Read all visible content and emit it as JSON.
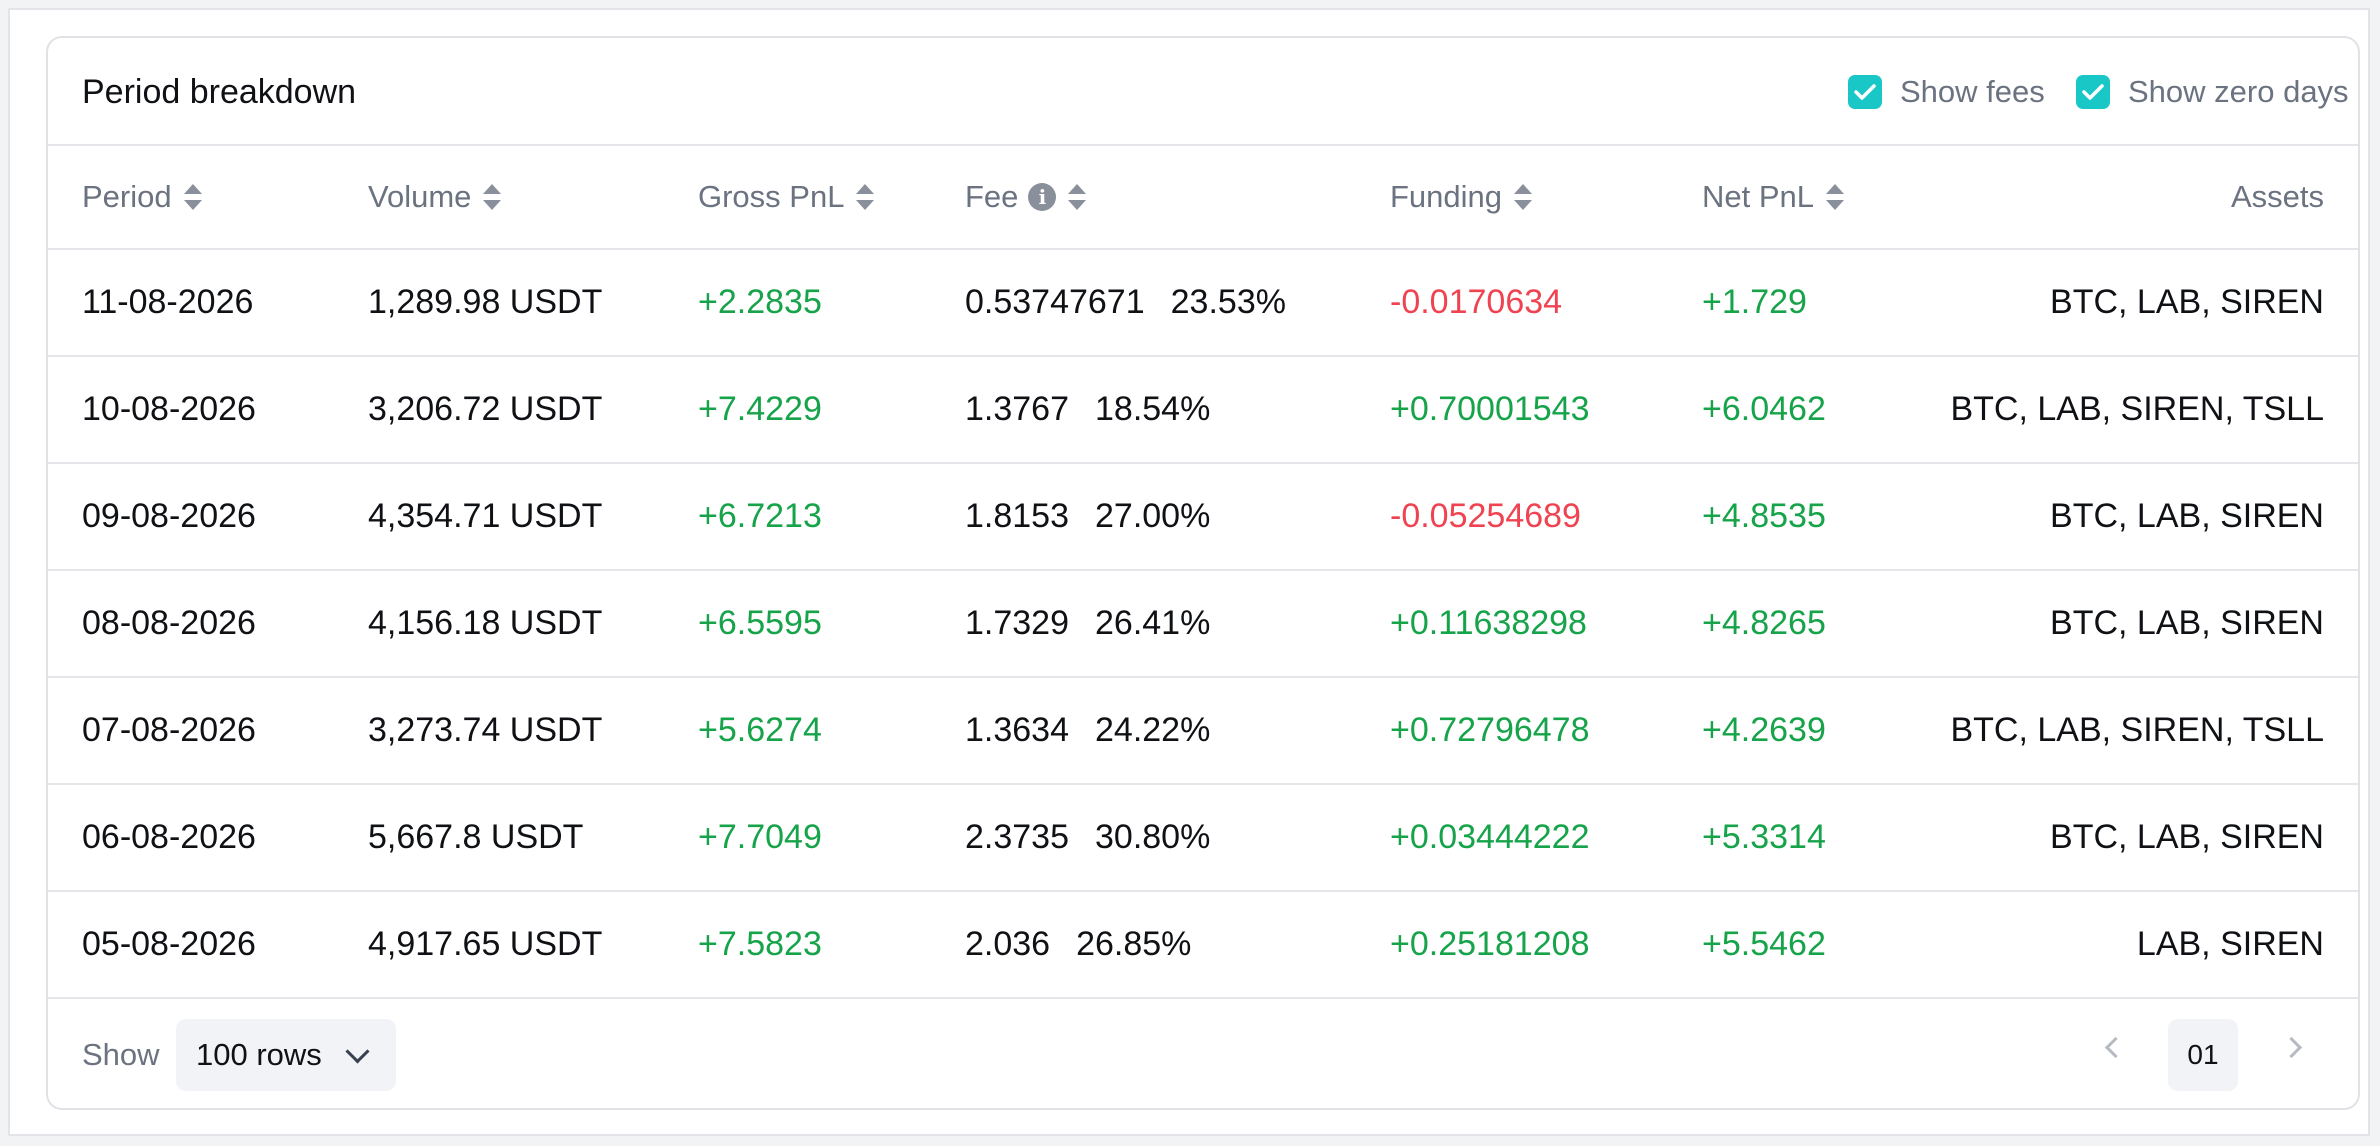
{
  "header": {
    "title": "Period breakdown",
    "show_fees_label": "Show fees",
    "show_zero_days_label": "Show zero days"
  },
  "columns": {
    "period": "Period",
    "volume": "Volume",
    "gross_pnl": "Gross PnL",
    "fee": "Fee",
    "funding": "Funding",
    "net_pnl": "Net PnL",
    "assets": "Assets"
  },
  "rows": [
    {
      "period": "11-08-2026",
      "volume": "1,289.98 USDT",
      "gross": "+2.2835",
      "fee": "0.53747671",
      "fee_pct": "23.53%",
      "funding": "-0.0170634",
      "net": "+1.729",
      "assets": "BTC, LAB, SIREN"
    },
    {
      "period": "10-08-2026",
      "volume": "3,206.72 USDT",
      "gross": "+7.4229",
      "fee": "1.3767",
      "fee_pct": "18.54%",
      "funding": "+0.70001543",
      "net": "+6.0462",
      "assets": "BTC, LAB, SIREN, TSLL"
    },
    {
      "period": "09-08-2026",
      "volume": "4,354.71 USDT",
      "gross": "+6.7213",
      "fee": "1.8153",
      "fee_pct": "27.00%",
      "funding": "-0.05254689",
      "net": "+4.8535",
      "assets": "BTC, LAB, SIREN"
    },
    {
      "period": "08-08-2026",
      "volume": "4,156.18 USDT",
      "gross": "+6.5595",
      "fee": "1.7329",
      "fee_pct": "26.41%",
      "funding": "+0.11638298",
      "net": "+4.8265",
      "assets": "BTC, LAB, SIREN"
    },
    {
      "period": "07-08-2026",
      "volume": "3,273.74 USDT",
      "gross": "+5.6274",
      "fee": "1.3634",
      "fee_pct": "24.22%",
      "funding": "+0.72796478",
      "net": "+4.2639",
      "assets": "BTC, LAB, SIREN, TSLL"
    },
    {
      "period": "06-08-2026",
      "volume": "5,667.8 USDT",
      "gross": "+7.7049",
      "fee": "2.3735",
      "fee_pct": "30.80%",
      "funding": "+0.03444222",
      "net": "+5.3314",
      "assets": "BTC, LAB, SIREN"
    },
    {
      "period": "05-08-2026",
      "volume": "4,917.65 USDT",
      "gross": "+7.5823",
      "fee": "2.036",
      "fee_pct": "26.85%",
      "funding": "+0.25181208",
      "net": "+5.5462",
      "assets": "LAB, SIREN"
    }
  ],
  "footer": {
    "show_label": "Show",
    "rows_select_value": "100 rows",
    "current_page": "01"
  },
  "colors": {
    "accent": "#19c7c7",
    "positive": "#16a34a",
    "negative": "#ef4351"
  }
}
